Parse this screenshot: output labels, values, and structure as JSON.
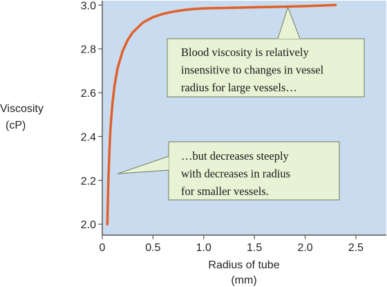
{
  "chart_data": {
    "type": "line",
    "xlabel": [
      "Radius of tube",
      "(mm)"
    ],
    "ylabel": [
      "Viscosity",
      "(cP)"
    ],
    "xlim": [
      0,
      2.8
    ],
    "ylim": [
      1.95,
      3.02
    ],
    "x_ticks": [
      0,
      0.5,
      1.0,
      1.5,
      2.0,
      2.5
    ],
    "x_tick_labels": [
      "0",
      "0.5",
      "1.0",
      "1.5",
      "2.0",
      "2.5"
    ],
    "y_ticks": [
      2.0,
      2.2,
      2.4,
      2.6,
      2.8,
      3.0
    ],
    "y_tick_labels": [
      "2.0",
      "2.2",
      "2.4",
      "2.6",
      "2.8",
      "3.0"
    ],
    "grid": false,
    "series": [
      {
        "color": "#e0602a",
        "x": [
          0.05,
          0.06,
          0.07,
          0.08,
          0.1,
          0.12,
          0.15,
          0.2,
          0.25,
          0.3,
          0.4,
          0.5,
          0.6,
          0.7,
          0.8,
          0.9,
          1.0,
          1.2,
          1.5,
          1.8,
          2.0,
          2.3
        ],
        "y": [
          2.0,
          2.2,
          2.33,
          2.43,
          2.55,
          2.63,
          2.71,
          2.79,
          2.84,
          2.875,
          2.92,
          2.945,
          2.96,
          2.97,
          2.977,
          2.982,
          2.985,
          2.987,
          2.99,
          2.993,
          2.995,
          3.0
        ]
      }
    ],
    "annotations": [
      {
        "lines": [
          "Blood viscosity is relatively",
          "insensitive to changes in vessel",
          "radius for large vessels…"
        ],
        "pointer_to": [
          1.83,
          2.99
        ]
      },
      {
        "lines": [
          "…but decreases steeply",
          "with decreases in radius",
          "for smaller vessels."
        ],
        "pointer_to": [
          0.15,
          2.23
        ]
      }
    ],
    "colors": {
      "plot_background": "#c9dbee",
      "line": "#e0602a",
      "callout_fill": "#e8f2d4",
      "callout_border": "#6f7a5a"
    }
  }
}
